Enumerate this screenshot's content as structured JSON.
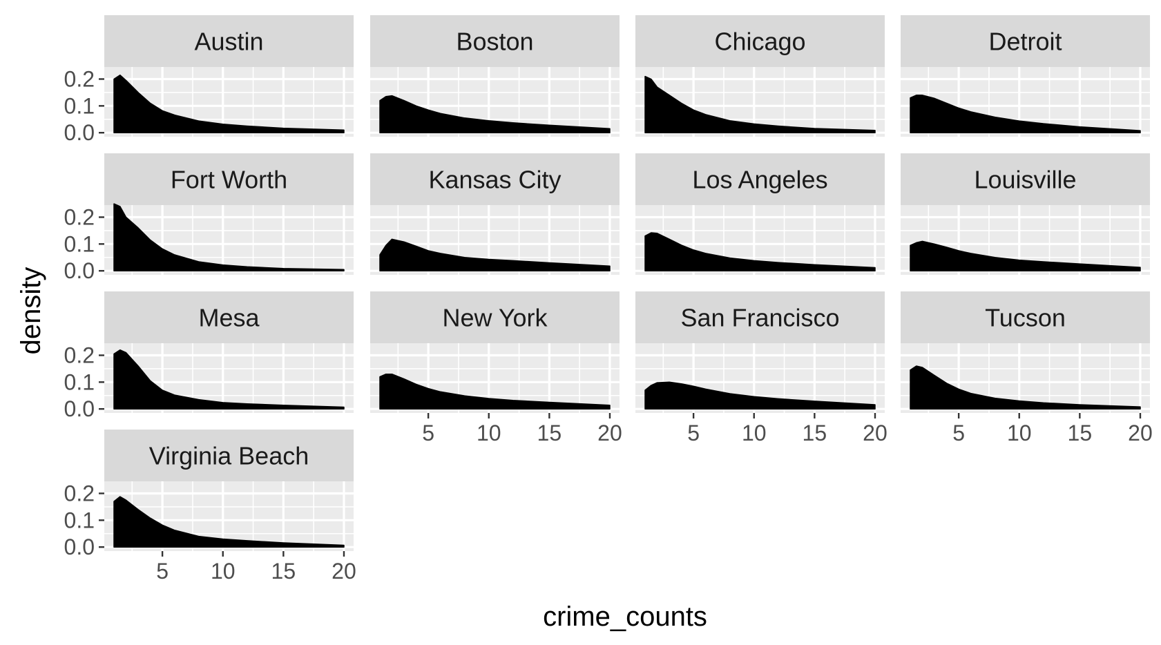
{
  "chart_data": {
    "type": "area",
    "xlabel": "crime_counts",
    "ylabel": "density",
    "xlim": [
      0.2,
      20.8
    ],
    "ylim": [
      -0.015,
      0.245
    ],
    "x_ticks": [
      5,
      10,
      15,
      20
    ],
    "x_tick_labels": [
      "5",
      "10",
      "15",
      "20"
    ],
    "y_ticks": [
      0.0,
      0.1,
      0.2
    ],
    "y_tick_labels": [
      "0.0",
      "0.1",
      "0.2"
    ],
    "facet_columns": 4,
    "grid": true,
    "fill_color": "#000000",
    "panel_background": "#ebebeb",
    "strip_background": "#d9d9d9",
    "x": [
      1,
      1.5,
      2,
      3,
      4,
      5,
      6,
      8,
      10,
      12,
      15,
      20
    ],
    "series": [
      {
        "name": "Austin",
        "values": [
          0.2,
          0.215,
          0.195,
          0.15,
          0.11,
          0.082,
          0.066,
          0.044,
          0.032,
          0.025,
          0.017,
          0.01
        ]
      },
      {
        "name": "Boston",
        "values": [
          0.12,
          0.135,
          0.138,
          0.12,
          0.1,
          0.085,
          0.072,
          0.055,
          0.045,
          0.037,
          0.028,
          0.015
        ]
      },
      {
        "name": "Chicago",
        "values": [
          0.21,
          0.2,
          0.17,
          0.14,
          0.11,
          0.085,
          0.068,
          0.045,
          0.033,
          0.025,
          0.016,
          0.009
        ]
      },
      {
        "name": "Detroit",
        "values": [
          0.13,
          0.14,
          0.14,
          0.128,
          0.11,
          0.092,
          0.078,
          0.058,
          0.044,
          0.034,
          0.022,
          0.008
        ]
      },
      {
        "name": "Fort Worth",
        "values": [
          0.25,
          0.24,
          0.2,
          0.16,
          0.115,
          0.082,
          0.06,
          0.034,
          0.022,
          0.015,
          0.009,
          0.005
        ]
      },
      {
        "name": "Kansas City",
        "values": [
          0.06,
          0.095,
          0.118,
          0.108,
          0.092,
          0.075,
          0.065,
          0.05,
          0.043,
          0.038,
          0.03,
          0.018
        ]
      },
      {
        "name": "Los Angeles",
        "values": [
          0.13,
          0.142,
          0.14,
          0.118,
          0.096,
          0.078,
          0.065,
          0.048,
          0.038,
          0.031,
          0.023,
          0.012
        ]
      },
      {
        "name": "Louisville",
        "values": [
          0.095,
          0.105,
          0.11,
          0.1,
          0.088,
          0.075,
          0.065,
          0.05,
          0.04,
          0.034,
          0.026,
          0.013
        ]
      },
      {
        "name": "Mesa",
        "values": [
          0.205,
          0.22,
          0.21,
          0.16,
          0.105,
          0.07,
          0.052,
          0.035,
          0.024,
          0.019,
          0.014,
          0.007
        ]
      },
      {
        "name": "New York",
        "values": [
          0.12,
          0.13,
          0.13,
          0.112,
          0.092,
          0.076,
          0.064,
          0.049,
          0.039,
          0.032,
          0.025,
          0.014
        ]
      },
      {
        "name": "San Francisco",
        "values": [
          0.07,
          0.088,
          0.098,
          0.1,
          0.094,
          0.085,
          0.074,
          0.057,
          0.046,
          0.038,
          0.029,
          0.016
        ]
      },
      {
        "name": "Tucson",
        "values": [
          0.145,
          0.16,
          0.155,
          0.125,
          0.096,
          0.074,
          0.058,
          0.04,
          0.03,
          0.023,
          0.016,
          0.008
        ]
      },
      {
        "name": "Virginia Beach",
        "values": [
          0.17,
          0.188,
          0.175,
          0.14,
          0.108,
          0.082,
          0.063,
          0.04,
          0.03,
          0.024,
          0.016,
          0.007
        ]
      }
    ]
  }
}
